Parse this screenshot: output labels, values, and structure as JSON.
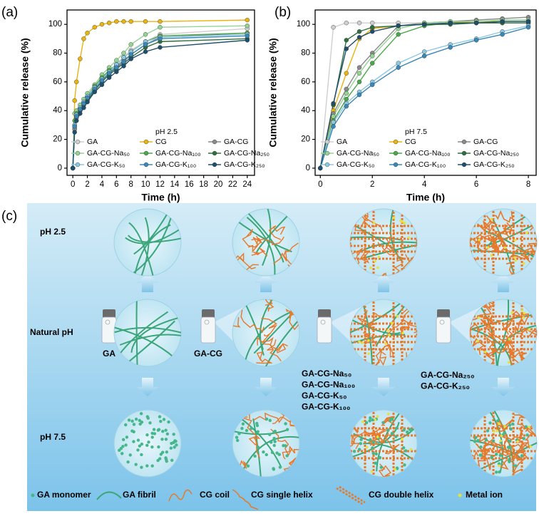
{
  "chart_data": [
    {
      "type": "line",
      "label": "(a)",
      "xlabel": "Time (h)",
      "ylabel": "Cumulative release (%)",
      "legend_title": "pH 2.5",
      "x": [
        0,
        0.25,
        0.5,
        1,
        1.5,
        2,
        3,
        4,
        5,
        6,
        7,
        8,
        10,
        12,
        24
      ],
      "xlim": [
        -0.8,
        25
      ],
      "xticks": [
        0,
        2,
        4,
        6,
        8,
        10,
        12,
        14,
        16,
        18,
        20,
        22,
        24
      ],
      "ylim": [
        -5,
        110
      ],
      "yticks": [
        0,
        20,
        40,
        60,
        80,
        100
      ],
      "series": [
        {
          "name": "GA",
          "color": "#cfcfcf",
          "values": [
            0,
            28,
            36,
            41,
            45,
            49,
            56,
            62,
            67,
            72,
            77,
            82,
            88,
            93,
            97
          ]
        },
        {
          "name": "CG",
          "color": "#e9b312",
          "values": [
            0,
            47,
            60,
            76,
            90,
            94,
            98,
            100,
            101,
            102,
            102,
            102,
            102,
            102,
            103
          ]
        },
        {
          "name": "GA-CG",
          "color": "#8a8a8a",
          "values": [
            0,
            27,
            35,
            40,
            44,
            48,
            55,
            61,
            66,
            71,
            75,
            79,
            86,
            91,
            94
          ]
        },
        {
          "name": "GA-CG-Na₅₀",
          "color": "#93d393",
          "values": [
            0,
            38,
            40,
            44,
            48,
            52,
            58,
            65,
            70,
            75,
            80,
            86,
            93,
            98,
            99
          ]
        },
        {
          "name": "GA-CG-Na₁₀₀",
          "color": "#4aa84a",
          "values": [
            0,
            33,
            38,
            42,
            46,
            50,
            57,
            63,
            68,
            72,
            77,
            81,
            88,
            92,
            94
          ]
        },
        {
          "name": "GA-CG-Na₂₅₀",
          "color": "#2f6e3f",
          "values": [
            0,
            30,
            36,
            40,
            44,
            47,
            54,
            60,
            65,
            69,
            73,
            77,
            84,
            88,
            90
          ]
        },
        {
          "name": "GA-CG-K₅₀",
          "color": "#8cc8e2",
          "values": [
            0,
            30,
            37,
            42,
            46,
            50,
            56,
            62,
            67,
            72,
            77,
            81,
            88,
            91,
            93
          ]
        },
        {
          "name": "GA-CG-K₁₀₀",
          "color": "#3a88b8",
          "values": [
            0,
            29,
            36,
            41,
            45,
            49,
            55,
            61,
            66,
            70,
            74,
            79,
            86,
            90,
            92
          ]
        },
        {
          "name": "GA-CG-K₂₅₀",
          "color": "#1e4f6e",
          "values": [
            0,
            25,
            33,
            38,
            42,
            46,
            53,
            58,
            63,
            67,
            71,
            76,
            81,
            84,
            89
          ]
        }
      ]
    },
    {
      "type": "line",
      "label": "(b)",
      "xlabel": "Time (h)",
      "ylabel": "Cumulative release (%)",
      "legend_title": "pH 7.5",
      "x": [
        0,
        0.5,
        1,
        1.5,
        2,
        3,
        4,
        5,
        6,
        7,
        8
      ],
      "xlim": [
        -0.2,
        8.3
      ],
      "xticks": [
        0,
        2,
        4,
        6,
        8
      ],
      "ylim": [
        -5,
        110
      ],
      "yticks": [
        0,
        20,
        40,
        60,
        80,
        100
      ],
      "series": [
        {
          "name": "GA",
          "color": "#cfcfcf",
          "values": [
            0,
            98,
            101,
            101,
            101,
            101,
            101,
            101,
            101,
            101,
            101
          ]
        },
        {
          "name": "CG",
          "color": "#e9b312",
          "values": [
            0,
            40,
            66,
            90,
            97,
            99,
            100,
            101,
            102,
            102,
            102
          ]
        },
        {
          "name": "GA-CG",
          "color": "#8a8a8a",
          "values": [
            0,
            38,
            55,
            70,
            80,
            99,
            101,
            102,
            103,
            104,
            105
          ]
        },
        {
          "name": "GA-CG-Na₅₀",
          "color": "#93d393",
          "values": [
            0,
            36,
            52,
            66,
            78,
            97,
            101,
            102,
            102,
            103,
            103
          ]
        },
        {
          "name": "GA-CG-Na₁₀₀",
          "color": "#4aa84a",
          "values": [
            0,
            33,
            48,
            60,
            73,
            93,
            99,
            101,
            101,
            102,
            102
          ]
        },
        {
          "name": "GA-CG-Na₂₅₀",
          "color": "#2f6e3f",
          "values": [
            0,
            44,
            89,
            95,
            98,
            99,
            100,
            100,
            101,
            101,
            101
          ]
        },
        {
          "name": "GA-CG-K₅₀",
          "color": "#8cc8e2",
          "values": [
            0,
            32,
            45,
            53,
            60,
            73,
            81,
            86,
            90,
            95,
            99
          ]
        },
        {
          "name": "GA-CG-K₁₀₀",
          "color": "#3a88b8",
          "values": [
            0,
            29,
            43,
            51,
            58,
            70,
            78,
            84,
            89,
            93,
            98
          ]
        },
        {
          "name": "GA-CG-K₂₅₀",
          "color": "#1e4f6e",
          "values": [
            0,
            45,
            83,
            91,
            95,
            99,
            100,
            101,
            101,
            102,
            102
          ]
        }
      ]
    }
  ],
  "schematic": {
    "label": "(c)",
    "rows": [
      "pH 2.5",
      "Natural pH",
      "pH 7.5"
    ],
    "columns": [
      [
        "GA"
      ],
      [
        "GA-CG"
      ],
      [
        "GA-CG-Na₅₀",
        "GA-CG-Na₁₀₀",
        "GA-CG-K₅₀",
        "GA-CG-K₁₀₀"
      ],
      [
        "GA-CG-Na₂₅₀",
        "GA-CG-K₂₅₀"
      ]
    ],
    "legend": [
      "GA monomer",
      "GA fibril",
      "CG coil",
      "CG single helix",
      "CG double helix",
      "Metal ion"
    ]
  }
}
